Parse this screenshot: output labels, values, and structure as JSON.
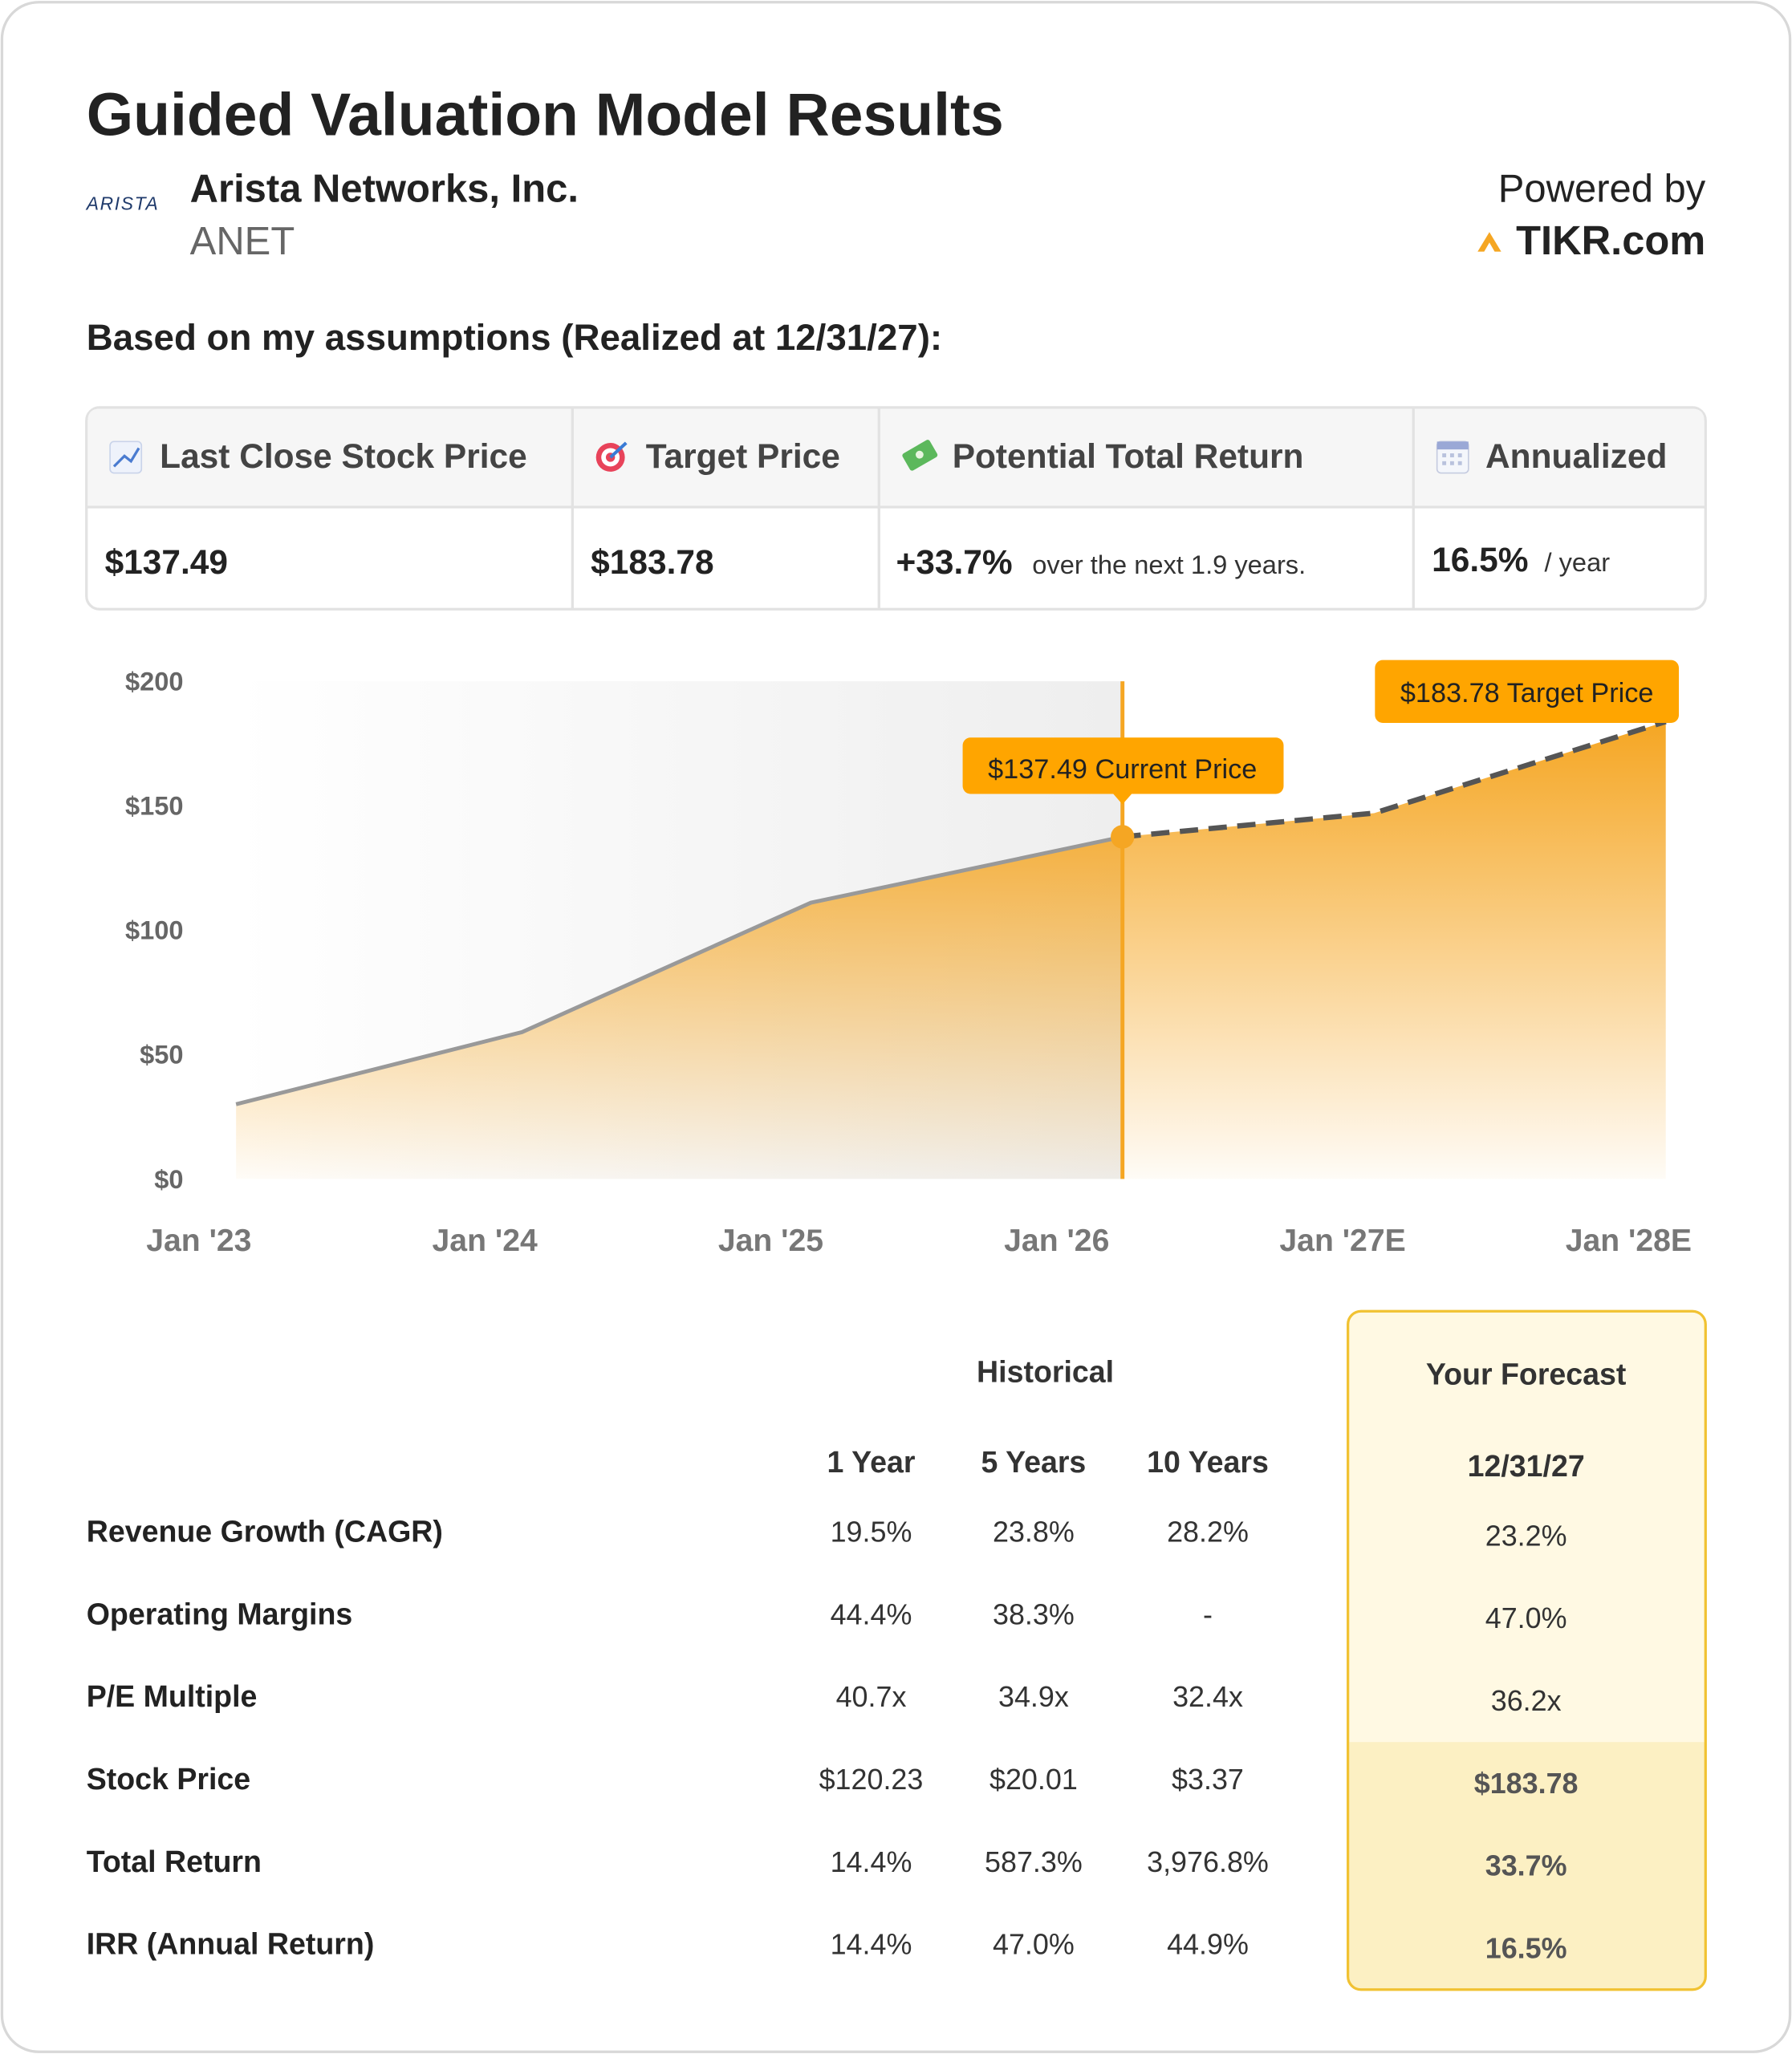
{
  "header": {
    "title": "Guided Valuation Model Results",
    "logo": "ARISTA",
    "company": "Arista Networks, Inc.",
    "ticker": "ANET",
    "powered_by": "Powered by",
    "brand": "TIKR.com"
  },
  "assumptions": "Based on my assumptions (Realized at 12/31/27):",
  "metrics": [
    {
      "label": "Last Close Stock Price",
      "value": "$137.49"
    },
    {
      "label": "Target Price",
      "value": "$183.78"
    },
    {
      "label": "Potential Total Return",
      "value": "+33.7%",
      "note": "over the next 1.9 years."
    },
    {
      "label": "Annualized",
      "value": "16.5%",
      "note": "/ year"
    }
  ],
  "chart_data": {
    "type": "area",
    "xlim": [
      2022.9,
      2028.15
    ],
    "xticks": [
      {
        "value": 2023,
        "label": "Jan '23"
      },
      {
        "value": 2024,
        "label": "Jan '24"
      },
      {
        "value": 2025,
        "label": "Jan '25"
      },
      {
        "value": 2026,
        "label": "Jan '26"
      },
      {
        "value": 2027,
        "label": "Jan '27E"
      },
      {
        "value": 2028,
        "label": "Jan '28E"
      }
    ],
    "ylim": [
      0,
      200
    ],
    "yticks": [
      {
        "value": 0,
        "label": "$0"
      },
      {
        "value": 50,
        "label": "$50"
      },
      {
        "value": 100,
        "label": "$100"
      },
      {
        "value": 150,
        "label": "$150"
      },
      {
        "value": 200,
        "label": "$200"
      }
    ],
    "area_color": "#f5a623",
    "series": [
      {
        "name": "Historical",
        "color": "#999999",
        "x": [
          2023.13,
          2024.13,
          2025.14,
          2026.23
        ],
        "values": [
          30,
          59,
          111,
          137.49
        ]
      },
      {
        "name": "Forecast",
        "color": "#555555",
        "x": [
          2026.23,
          2027.11,
          2028.13
        ],
        "values": [
          137.49,
          147,
          183.78
        ]
      }
    ],
    "annotations": [
      "$137.49 Current Price",
      "$183.78 Target Price"
    ]
  },
  "table": {
    "group_headers": [
      "Historical",
      "Your Forecast"
    ],
    "columns": [
      "1 Year",
      "5 Years",
      "10 Years",
      "12/31/27"
    ],
    "rows": [
      [
        "Revenue Growth (CAGR)",
        "19.5%",
        "23.8%",
        "28.2%",
        "23.2%"
      ],
      [
        "Operating Margins",
        "44.4%",
        "38.3%",
        "-",
        "47.0%"
      ],
      [
        "P/E Multiple",
        "40.7x",
        "34.9x",
        "32.4x",
        "36.2x"
      ],
      [
        "Stock Price",
        "$120.23",
        "$20.01",
        "$3.37",
        "$183.78"
      ],
      [
        "Total Return",
        "14.4%",
        "587.3%",
        "3,976.8%",
        "33.7%"
      ],
      [
        "IRR (Annual Return)",
        "14.4%",
        "47.0%",
        "44.9%",
        "16.5%"
      ]
    ]
  }
}
